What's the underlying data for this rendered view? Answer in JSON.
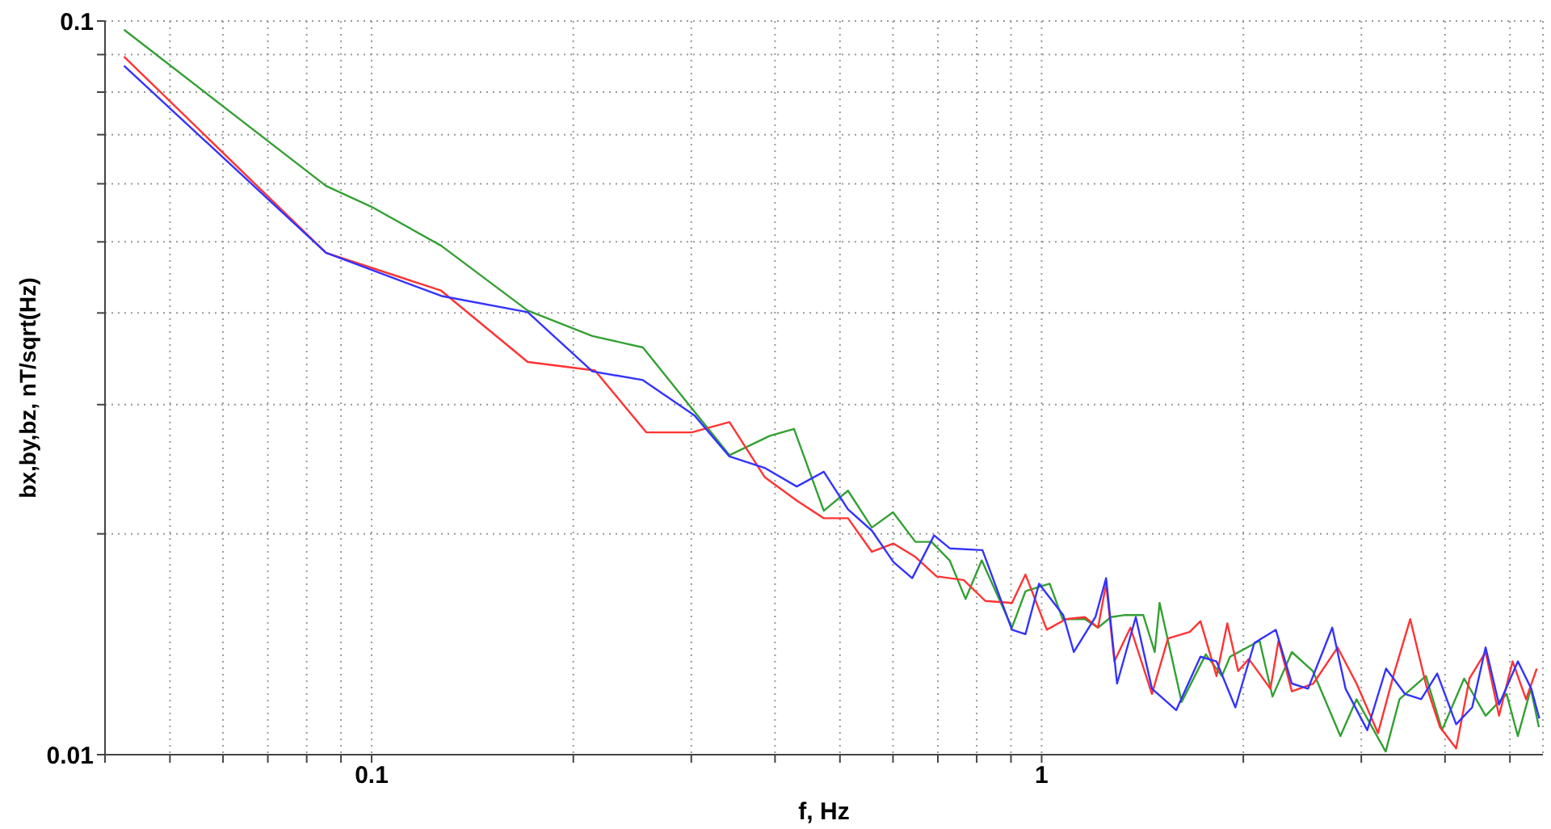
{
  "chart_data": {
    "type": "line",
    "xlabel": "f, Hz",
    "ylabel": "bx,by,bz, nT/sqrt(Hz)",
    "log": "xy",
    "grid": true,
    "marker": "none",
    "line_style": "solid",
    "xlim": [
      0.04,
      5.6
    ],
    "ylim": [
      0.01,
      0.1
    ],
    "xticks": [
      {
        "value": 0.04,
        "label": null
      },
      {
        "value": 0.05,
        "label": null
      },
      {
        "value": 0.06,
        "label": null
      },
      {
        "value": 0.07,
        "label": null
      },
      {
        "value": 0.08,
        "label": null
      },
      {
        "value": 0.09,
        "label": null
      },
      0.1,
      {
        "value": 0.2,
        "label": null
      },
      {
        "value": 0.3,
        "label": null
      },
      {
        "value": 0.4,
        "label": null
      },
      {
        "value": 0.5,
        "label": null
      },
      {
        "value": 0.6,
        "label": null
      },
      {
        "value": 0.7,
        "label": null
      },
      {
        "value": 0.8,
        "label": null
      },
      {
        "value": 0.9,
        "label": null
      },
      1,
      {
        "value": 2,
        "label": null
      },
      {
        "value": 3,
        "label": null
      },
      {
        "value": 4,
        "label": null
      },
      {
        "value": 5,
        "label": null
      }
    ],
    "yticks": [
      0.01,
      {
        "value": 0.02,
        "label": null
      },
      {
        "value": 0.03,
        "label": null
      },
      {
        "value": 0.04,
        "label": null
      },
      {
        "value": 0.05,
        "label": null
      },
      {
        "value": 0.06,
        "label": null
      },
      {
        "value": 0.07,
        "label": null
      },
      {
        "value": 0.08,
        "label": null
      },
      {
        "value": 0.09,
        "label": null
      },
      0.1
    ],
    "series": [
      {
        "color": "#33a033",
        "x": [
          0.0427,
          0.0855,
          0.1,
          0.127,
          0.171,
          0.2135,
          0.254,
          0.342,
          0.393,
          0.427,
          0.473,
          0.514,
          0.558,
          0.6,
          0.648,
          0.685,
          0.729,
          0.77,
          0.814,
          0.903,
          0.946,
          1.028,
          1.075,
          1.16,
          1.214,
          1.269,
          1.332,
          1.418,
          1.475,
          1.5,
          1.618,
          1.758,
          1.858,
          1.911,
          2.115,
          2.211,
          2.363,
          2.54,
          2.792,
          2.951,
          3.262,
          3.421,
          3.746,
          3.959,
          4.272,
          4.599,
          4.943,
          5.138,
          5.372,
          5.523
        ],
        "values": [
          0.0973,
          0.0596,
          0.0558,
          0.0494,
          0.0403,
          0.0372,
          0.0359,
          0.0256,
          0.0272,
          0.0278,
          0.0215,
          0.0229,
          0.0204,
          0.0214,
          0.0195,
          0.0195,
          0.0184,
          0.0163,
          0.0184,
          0.0149,
          0.0167,
          0.0171,
          0.0153,
          0.0153,
          0.0149,
          0.0154,
          0.0155,
          0.0155,
          0.0138,
          0.0161,
          0.0118,
          0.0137,
          0.0128,
          0.0136,
          0.0143,
          0.012,
          0.0138,
          0.013,
          0.0106,
          0.0119,
          0.0101,
          0.0119,
          0.0128,
          0.0108,
          0.0127,
          0.0113,
          0.0121,
          0.0106,
          0.0123,
          0.0109
        ]
      },
      {
        "color": "#ff3333",
        "x": [
          0.0427,
          0.0855,
          0.127,
          0.171,
          0.2154,
          0.257,
          0.3004,
          0.342,
          0.386,
          0.431,
          0.473,
          0.514,
          0.558,
          0.601,
          0.648,
          0.697,
          0.765,
          0.824,
          0.903,
          0.946,
          1.018,
          1.087,
          1.16,
          1.214,
          1.248,
          1.284,
          1.357,
          1.461,
          1.544,
          1.663,
          1.726,
          1.824,
          1.893,
          1.965,
          2.038,
          2.195,
          2.257,
          2.363,
          2.544,
          2.765,
          2.951,
          3.177,
          3.357,
          3.549,
          3.752,
          3.932,
          4.156,
          4.351,
          4.599,
          4.816,
          5.046,
          5.284,
          5.483
        ],
        "values": [
          0.0894,
          0.0483,
          0.0429,
          0.0343,
          0.0334,
          0.0275,
          0.0275,
          0.0284,
          0.0239,
          0.0222,
          0.021,
          0.021,
          0.0189,
          0.0194,
          0.0186,
          0.0175,
          0.0173,
          0.0162,
          0.0161,
          0.0176,
          0.0148,
          0.0153,
          0.0154,
          0.0149,
          0.0171,
          0.0134,
          0.0149,
          0.0121,
          0.0144,
          0.0147,
          0.0152,
          0.0128,
          0.0151,
          0.013,
          0.0135,
          0.0123,
          0.0143,
          0.0122,
          0.0125,
          0.014,
          0.0125,
          0.0107,
          0.0129,
          0.0153,
          0.0124,
          0.0109,
          0.0102,
          0.0127,
          0.0138,
          0.0113,
          0.0134,
          0.0119,
          0.0131
        ]
      },
      {
        "color": "#3333ff",
        "x": [
          0.0427,
          0.0855,
          0.127,
          0.171,
          0.2135,
          0.254,
          0.3033,
          0.342,
          0.386,
          0.431,
          0.473,
          0.514,
          0.558,
          0.601,
          0.641,
          0.691,
          0.73,
          0.816,
          0.903,
          0.946,
          0.991,
          1.077,
          1.117,
          1.203,
          1.248,
          1.296,
          1.382,
          1.461,
          1.588,
          1.726,
          1.824,
          1.946,
          2.077,
          2.236,
          2.363,
          2.498,
          2.715,
          2.842,
          3.062,
          3.266,
          3.485,
          3.685,
          3.894,
          4.156,
          4.391,
          4.599,
          4.816,
          5.138,
          5.38,
          5.532
        ],
        "values": [
          0.0869,
          0.0483,
          0.0422,
          0.0401,
          0.0333,
          0.0324,
          0.029,
          0.0255,
          0.0246,
          0.0232,
          0.0243,
          0.0216,
          0.0202,
          0.0183,
          0.0174,
          0.0199,
          0.0191,
          0.019,
          0.0148,
          0.0146,
          0.0171,
          0.0155,
          0.0138,
          0.0154,
          0.0174,
          0.0125,
          0.0154,
          0.0123,
          0.0115,
          0.0136,
          0.0134,
          0.0116,
          0.0142,
          0.0148,
          0.0125,
          0.0123,
          0.0149,
          0.0123,
          0.0108,
          0.0131,
          0.0121,
          0.0119,
          0.0129,
          0.011,
          0.0116,
          0.014,
          0.0117,
          0.0134,
          0.0123,
          0.0112
        ]
      }
    ]
  }
}
